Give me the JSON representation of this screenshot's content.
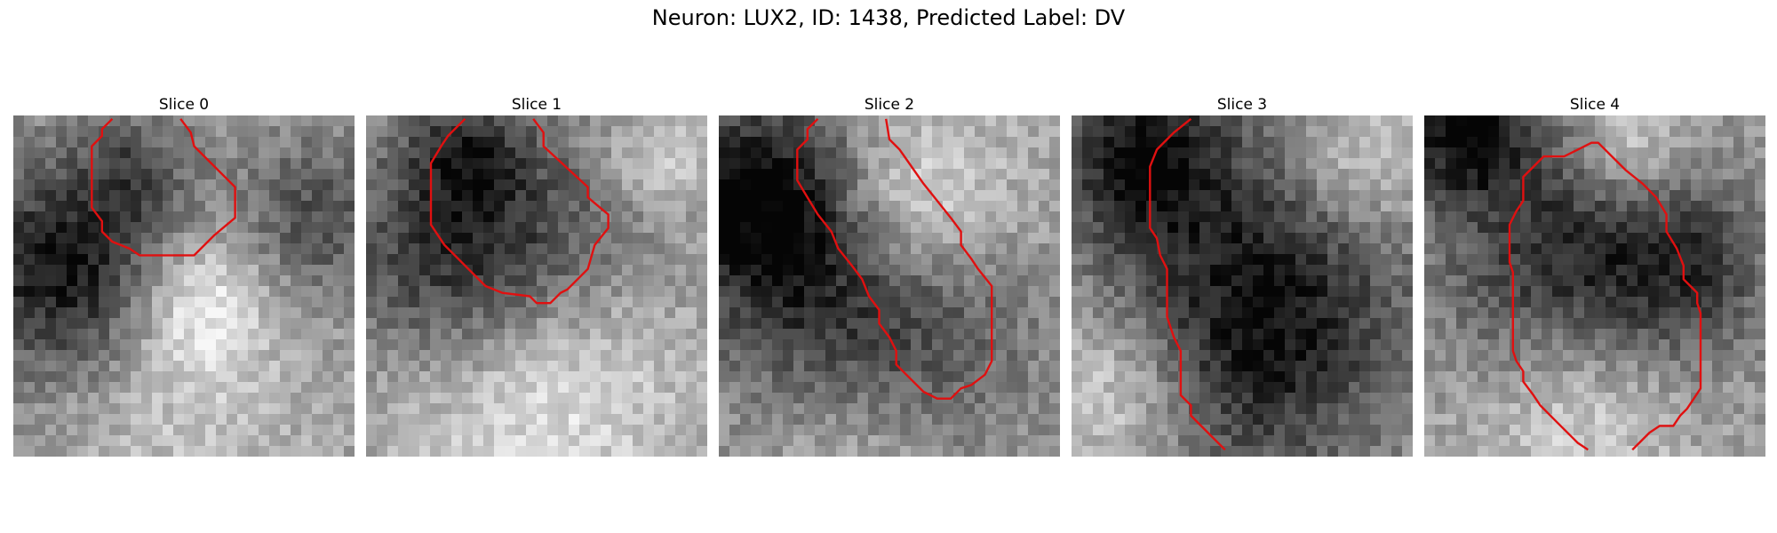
{
  "figure": {
    "title": "Neuron: LUX2, ID: 1438, Predicted Label: DV"
  },
  "colors": {
    "contour": "#e01010",
    "background": "#ffffff"
  },
  "slices": [
    {
      "label": "Slice 0",
      "seed": 11,
      "blobs": [
        [
          0.15,
          0.45,
          0.22,
          -0.55
        ],
        [
          0.35,
          0.15,
          0.12,
          -0.25
        ],
        [
          0.9,
          0.3,
          0.18,
          -0.3
        ],
        [
          0.55,
          0.55,
          0.14,
          0.35
        ],
        [
          0.5,
          0.9,
          0.25,
          0.15
        ]
      ],
      "contour": [
        [
          0.29,
          0.01
        ],
        [
          0.26,
          0.04
        ],
        [
          0.26,
          0.06
        ],
        [
          0.23,
          0.09
        ],
        [
          0.23,
          0.27
        ],
        [
          0.26,
          0.31
        ],
        [
          0.26,
          0.34
        ],
        [
          0.29,
          0.37
        ],
        [
          0.34,
          0.39
        ],
        [
          0.37,
          0.41
        ],
        [
          0.53,
          0.41
        ],
        [
          0.59,
          0.35
        ],
        [
          0.65,
          0.3
        ],
        [
          0.65,
          0.21
        ],
        [
          0.53,
          0.09
        ],
        [
          0.52,
          0.05
        ],
        [
          0.49,
          0.01
        ]
      ]
    },
    {
      "label": "Slice 1",
      "seed": 23,
      "blobs": [
        [
          0.3,
          0.4,
          0.25,
          -0.55
        ],
        [
          0.3,
          0.1,
          0.12,
          -0.3
        ],
        [
          0.75,
          0.3,
          0.18,
          -0.15
        ],
        [
          0.5,
          0.8,
          0.3,
          0.3
        ],
        [
          0.85,
          0.15,
          0.12,
          0.25
        ]
      ],
      "contour": [
        [
          0.29,
          0.01
        ],
        [
          0.26,
          0.04
        ],
        [
          0.24,
          0.06
        ],
        [
          0.22,
          0.09
        ],
        [
          0.19,
          0.14
        ],
        [
          0.19,
          0.32
        ],
        [
          0.23,
          0.38
        ],
        [
          0.3,
          0.45
        ],
        [
          0.35,
          0.5
        ],
        [
          0.4,
          0.52
        ],
        [
          0.48,
          0.53
        ],
        [
          0.5,
          0.55
        ],
        [
          0.54,
          0.55
        ],
        [
          0.57,
          0.52
        ],
        [
          0.59,
          0.51
        ],
        [
          0.65,
          0.45
        ],
        [
          0.67,
          0.38
        ],
        [
          0.71,
          0.33
        ],
        [
          0.71,
          0.29
        ],
        [
          0.65,
          0.24
        ],
        [
          0.65,
          0.21
        ],
        [
          0.52,
          0.09
        ],
        [
          0.52,
          0.05
        ],
        [
          0.49,
          0.01
        ]
      ]
    },
    {
      "label": "Slice 2",
      "seed": 37,
      "blobs": [
        [
          0.12,
          0.25,
          0.22,
          -0.6
        ],
        [
          0.45,
          0.65,
          0.3,
          -0.45
        ],
        [
          0.55,
          0.25,
          0.18,
          0.35
        ],
        [
          0.4,
          0.95,
          0.22,
          0.25
        ],
        [
          0.85,
          0.2,
          0.2,
          0.05
        ]
      ],
      "contour": [
        [
          0.29,
          0.01
        ],
        [
          0.26,
          0.04
        ],
        [
          0.26,
          0.07
        ],
        [
          0.23,
          0.1
        ],
        [
          0.23,
          0.19
        ],
        [
          0.26,
          0.24
        ],
        [
          0.29,
          0.29
        ],
        [
          0.33,
          0.34
        ],
        [
          0.35,
          0.39
        ],
        [
          0.39,
          0.44
        ],
        [
          0.42,
          0.48
        ],
        [
          0.44,
          0.53
        ],
        [
          0.47,
          0.57
        ],
        [
          0.47,
          0.61
        ],
        [
          0.5,
          0.65
        ],
        [
          0.52,
          0.69
        ],
        [
          0.52,
          0.73
        ],
        [
          0.56,
          0.77
        ],
        [
          0.6,
          0.81
        ],
        [
          0.64,
          0.83
        ],
        [
          0.68,
          0.83
        ],
        [
          0.71,
          0.8
        ],
        [
          0.74,
          0.79
        ],
        [
          0.78,
          0.76
        ],
        [
          0.8,
          0.72
        ],
        [
          0.8,
          0.5
        ],
        [
          0.76,
          0.45
        ],
        [
          0.74,
          0.42
        ],
        [
          0.71,
          0.38
        ],
        [
          0.71,
          0.34
        ],
        [
          0.68,
          0.3
        ],
        [
          0.64,
          0.25
        ],
        [
          0.6,
          0.2
        ],
        [
          0.53,
          0.1
        ],
        [
          0.5,
          0.07
        ],
        [
          0.49,
          0.01
        ]
      ]
    },
    {
      "label": "Slice 3",
      "seed": 53,
      "blobs": [
        [
          0.2,
          0.1,
          0.18,
          -0.5
        ],
        [
          0.55,
          0.55,
          0.32,
          -0.55
        ],
        [
          0.85,
          0.15,
          0.15,
          0.25
        ],
        [
          0.15,
          0.8,
          0.18,
          0.3
        ],
        [
          0.5,
          0.85,
          0.2,
          -0.1
        ]
      ],
      "contour": [
        [
          0.35,
          0.01
        ],
        [
          0.3,
          0.05
        ],
        [
          0.25,
          0.1
        ],
        [
          0.23,
          0.15
        ],
        [
          0.23,
          0.33
        ],
        [
          0.25,
          0.36
        ],
        [
          0.26,
          0.41
        ],
        [
          0.28,
          0.45
        ],
        [
          0.28,
          0.59
        ],
        [
          0.3,
          0.65
        ],
        [
          0.32,
          0.69
        ],
        [
          0.32,
          0.82
        ],
        [
          0.35,
          0.85
        ],
        [
          0.35,
          0.88
        ],
        [
          0.41,
          0.94
        ],
        [
          0.45,
          0.98
        ]
      ]
    },
    {
      "label": "Slice 4",
      "seed": 71,
      "blobs": [
        [
          0.12,
          0.05,
          0.14,
          -0.55
        ],
        [
          0.45,
          0.45,
          0.28,
          -0.5
        ],
        [
          0.8,
          0.45,
          0.16,
          -0.25
        ],
        [
          0.6,
          0.1,
          0.12,
          0.3
        ],
        [
          0.45,
          0.85,
          0.22,
          0.3
        ]
      ],
      "contour": [
        [
          0.48,
          0.98
        ],
        [
          0.45,
          0.96
        ],
        [
          0.44,
          0.95
        ],
        [
          0.38,
          0.89
        ],
        [
          0.34,
          0.85
        ],
        [
          0.32,
          0.82
        ],
        [
          0.29,
          0.78
        ],
        [
          0.29,
          0.75
        ],
        [
          0.27,
          0.72
        ],
        [
          0.26,
          0.69
        ],
        [
          0.26,
          0.46
        ],
        [
          0.25,
          0.43
        ],
        [
          0.25,
          0.32
        ],
        [
          0.27,
          0.28
        ],
        [
          0.29,
          0.25
        ],
        [
          0.29,
          0.18
        ],
        [
          0.32,
          0.15
        ],
        [
          0.35,
          0.12
        ],
        [
          0.41,
          0.12
        ],
        [
          0.45,
          0.1
        ],
        [
          0.49,
          0.08
        ],
        [
          0.51,
          0.08
        ],
        [
          0.55,
          0.12
        ],
        [
          0.59,
          0.16
        ],
        [
          0.64,
          0.2
        ],
        [
          0.68,
          0.24
        ],
        [
          0.71,
          0.29
        ],
        [
          0.71,
          0.34
        ],
        [
          0.74,
          0.39
        ],
        [
          0.76,
          0.44
        ],
        [
          0.76,
          0.48
        ],
        [
          0.78,
          0.5
        ],
        [
          0.8,
          0.52
        ],
        [
          0.8,
          0.55
        ],
        [
          0.81,
          0.58
        ],
        [
          0.81,
          0.8
        ],
        [
          0.79,
          0.83
        ],
        [
          0.77,
          0.86
        ],
        [
          0.75,
          0.88
        ],
        [
          0.73,
          0.91
        ],
        [
          0.69,
          0.91
        ],
        [
          0.66,
          0.93
        ],
        [
          0.63,
          0.96
        ],
        [
          0.61,
          0.98
        ]
      ]
    }
  ]
}
